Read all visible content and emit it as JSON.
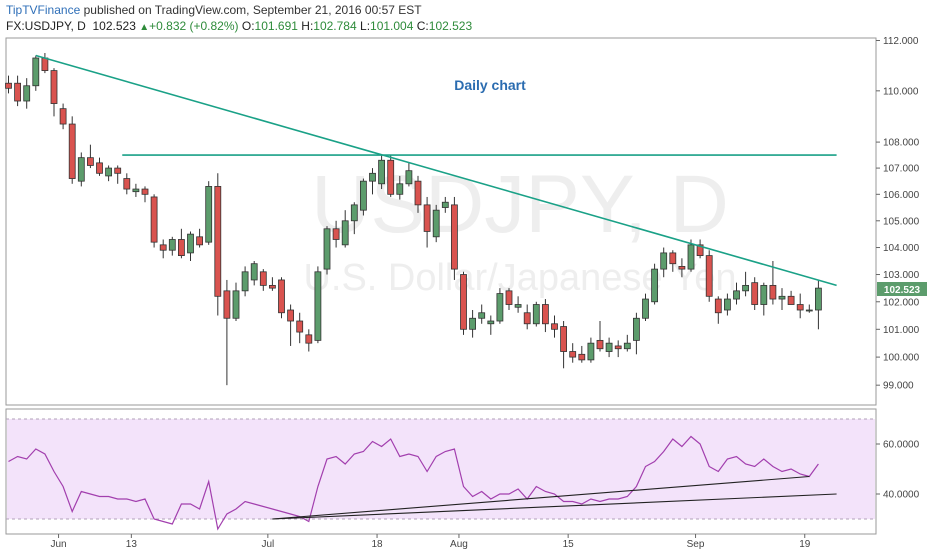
{
  "header": {
    "brand": "TipTVFinance",
    "published": "published on TradingView.com, September 21, 2016 00:57 EST",
    "symbol": "FX:USDJPY, D",
    "last": "102.523",
    "change": "+0.832 (+0.82%)",
    "open_label": "O:",
    "open": "101.691",
    "high_label": "H:",
    "high": "102.784",
    "low_label": "L:",
    "low": "101.004",
    "close_label": "C:",
    "close": "102.523"
  },
  "watermark": {
    "symbol": "USDJPY, D",
    "name": "U.S. Dollar/Japanese Yen"
  },
  "annotation": "Daily chart",
  "price_tag": "102.523",
  "colors": {
    "up": "#5c9c6c",
    "down": "#d9534f",
    "trend": "#1aa187",
    "rsi_line": "#a23fae",
    "rsi_bg": "#f3e3fa",
    "rsi_trend": "#222222"
  },
  "chart_data": [
    {
      "type": "candlestick",
      "y_scale": "log",
      "ylim": [
        98.3,
        112.1
      ],
      "yticks": [
        "99.000",
        "100.000",
        "101.000",
        "102.000",
        "103.000",
        "104.000",
        "105.000",
        "106.000",
        "107.000",
        "108.000",
        "110.000",
        "112.000"
      ],
      "xticks": [
        "Jun",
        "13",
        "Jul",
        "18",
        "Aug",
        "15",
        "Sep",
        "19"
      ],
      "ohlc": [
        [
          110.3,
          110.6,
          109.9,
          110.1
        ],
        [
          110.3,
          110.6,
          109.4,
          109.6
        ],
        [
          109.6,
          110.5,
          109.3,
          110.2
        ],
        [
          110.2,
          111.4,
          110.0,
          111.3
        ],
        [
          111.3,
          111.5,
          110.7,
          110.8
        ],
        [
          110.8,
          110.9,
          109.0,
          109.5
        ],
        [
          109.3,
          109.5,
          108.5,
          108.7
        ],
        [
          108.7,
          109.0,
          106.4,
          106.6
        ],
        [
          106.5,
          107.6,
          106.3,
          107.4
        ],
        [
          107.4,
          107.9,
          107.0,
          107.1
        ],
        [
          107.2,
          107.4,
          106.7,
          106.8
        ],
        [
          106.7,
          107.1,
          106.5,
          107.0
        ],
        [
          107.0,
          107.1,
          106.4,
          106.8
        ],
        [
          106.6,
          106.8,
          106.0,
          106.2
        ],
        [
          106.1,
          106.4,
          105.9,
          106.2
        ],
        [
          106.2,
          106.3,
          105.7,
          106.0
        ],
        [
          105.9,
          106.0,
          104.0,
          104.2
        ],
        [
          104.1,
          104.3,
          103.6,
          103.9
        ],
        [
          103.9,
          104.4,
          103.7,
          104.3
        ],
        [
          104.3,
          104.7,
          103.6,
          103.7
        ],
        [
          103.8,
          104.6,
          103.5,
          104.5
        ],
        [
          104.4,
          104.7,
          104.0,
          104.1
        ],
        [
          104.2,
          106.5,
          104.1,
          106.3
        ],
        [
          106.3,
          106.8,
          101.5,
          102.2
        ],
        [
          102.4,
          102.8,
          99.0,
          101.4
        ],
        [
          101.4,
          102.7,
          101.3,
          102.4
        ],
        [
          102.4,
          103.3,
          102.2,
          103.1
        ],
        [
          102.8,
          103.5,
          102.6,
          103.4
        ],
        [
          103.1,
          103.2,
          102.4,
          102.6
        ],
        [
          102.6,
          102.9,
          102.4,
          102.5
        ],
        [
          102.8,
          102.9,
          101.4,
          101.6
        ],
        [
          101.7,
          101.9,
          100.4,
          101.3
        ],
        [
          101.3,
          101.6,
          100.5,
          100.9
        ],
        [
          100.8,
          101.0,
          100.2,
          100.5
        ],
        [
          100.6,
          103.3,
          100.5,
          103.1
        ],
        [
          103.2,
          104.8,
          103.0,
          104.7
        ],
        [
          104.7,
          105.0,
          104.0,
          104.3
        ],
        [
          104.1,
          105.4,
          104.0,
          105.0
        ],
        [
          105.0,
          105.7,
          104.5,
          105.6
        ],
        [
          105.4,
          106.6,
          105.2,
          106.5
        ],
        [
          106.5,
          107.0,
          106.0,
          106.8
        ],
        [
          106.4,
          107.5,
          106.2,
          107.3
        ],
        [
          107.3,
          107.5,
          105.9,
          106.0
        ],
        [
          106.0,
          106.7,
          105.8,
          106.4
        ],
        [
          106.4,
          107.2,
          106.3,
          106.9
        ],
        [
          106.5,
          106.7,
          105.3,
          105.6
        ],
        [
          105.6,
          105.9,
          104.0,
          104.6
        ],
        [
          104.4,
          105.6,
          104.2,
          105.4
        ],
        [
          105.5,
          105.9,
          105.3,
          105.7
        ],
        [
          105.6,
          105.9,
          102.8,
          103.2
        ],
        [
          103.0,
          103.1,
          100.8,
          101.0
        ],
        [
          101.0,
          101.7,
          100.7,
          101.4
        ],
        [
          101.4,
          101.9,
          101.2,
          101.6
        ],
        [
          101.2,
          101.5,
          100.8,
          101.3
        ],
        [
          101.3,
          102.5,
          101.2,
          102.3
        ],
        [
          102.4,
          102.5,
          101.7,
          101.9
        ],
        [
          101.8,
          102.2,
          101.6,
          101.9
        ],
        [
          101.6,
          101.9,
          101.0,
          101.2
        ],
        [
          101.2,
          102.0,
          101.1,
          101.9
        ],
        [
          101.9,
          102.1,
          100.9,
          101.2
        ],
        [
          101.2,
          101.5,
          100.7,
          101.0
        ],
        [
          101.1,
          101.3,
          99.6,
          100.2
        ],
        [
          100.2,
          100.5,
          99.8,
          100.0
        ],
        [
          100.1,
          100.4,
          99.8,
          99.9
        ],
        [
          99.9,
          100.7,
          99.8,
          100.5
        ],
        [
          100.6,
          101.3,
          100.2,
          100.3
        ],
        [
          100.2,
          100.7,
          100.0,
          100.5
        ],
        [
          100.4,
          100.6,
          100.0,
          100.3
        ],
        [
          100.3,
          100.8,
          100.2,
          100.5
        ],
        [
          100.6,
          101.6,
          100.1,
          101.4
        ],
        [
          101.4,
          102.3,
          101.3,
          102.1
        ],
        [
          102.0,
          103.4,
          101.9,
          103.2
        ],
        [
          103.2,
          104.0,
          102.9,
          103.8
        ],
        [
          103.8,
          103.9,
          103.1,
          103.4
        ],
        [
          103.3,
          103.6,
          102.9,
          103.2
        ],
        [
          103.2,
          104.3,
          103.1,
          104.1
        ],
        [
          104.1,
          104.3,
          103.6,
          103.7
        ],
        [
          103.7,
          103.9,
          102.0,
          102.2
        ],
        [
          102.1,
          102.2,
          101.2,
          101.6
        ],
        [
          101.7,
          102.3,
          101.5,
          102.1
        ],
        [
          102.1,
          102.7,
          101.9,
          102.4
        ],
        [
          102.4,
          103.1,
          102.2,
          102.6
        ],
        [
          102.7,
          102.9,
          101.7,
          101.9
        ],
        [
          101.9,
          102.7,
          101.5,
          102.6
        ],
        [
          102.6,
          103.5,
          101.9,
          102.1
        ],
        [
          102.1,
          102.5,
          101.7,
          102.2
        ],
        [
          102.2,
          102.4,
          101.9,
          101.9
        ],
        [
          101.9,
          102.3,
          101.4,
          101.7
        ],
        [
          101.7,
          101.9,
          101.6,
          101.7
        ],
        [
          101.7,
          102.8,
          101.0,
          102.5
        ]
      ],
      "lines": [
        {
          "name": "",
          "points": [
            [
              3,
              111.4
            ],
            [
              91,
              102.6
            ]
          ]
        },
        {
          "name": "",
          "points": [
            [
              12.5,
              107.5
            ],
            [
              91,
              107.5
            ]
          ]
        }
      ]
    },
    {
      "type": "line",
      "ylim": [
        24,
        74
      ],
      "yticks": [
        "40.0000",
        "60.0000"
      ],
      "band": [
        30,
        70
      ],
      "values": [
        53,
        55,
        54,
        58,
        56,
        49,
        43,
        33,
        41,
        40,
        39,
        39,
        38,
        38,
        37,
        38,
        30,
        29,
        28,
        36,
        36,
        34,
        45,
        26,
        32,
        34,
        37,
        36,
        35,
        34,
        33,
        32,
        31,
        29,
        43,
        54,
        55,
        52,
        56,
        57,
        61,
        59,
        62,
        55,
        56,
        55,
        49,
        55,
        57,
        58,
        43,
        39,
        41,
        38,
        40,
        40,
        42,
        38,
        43,
        41,
        40,
        37,
        37,
        36,
        38,
        37,
        38,
        38,
        39,
        43,
        51,
        53,
        57,
        62,
        59,
        63,
        60,
        51,
        49,
        54,
        55,
        52,
        51,
        54,
        51,
        49,
        50,
        48,
        47,
        52
      ],
      "lines": [
        {
          "name": "",
          "points": [
            [
              29,
              30
            ],
            [
              88,
              47
            ]
          ]
        },
        {
          "name": "",
          "points": [
            [
              29,
              30
            ],
            [
              91,
              40
            ]
          ]
        }
      ]
    }
  ]
}
